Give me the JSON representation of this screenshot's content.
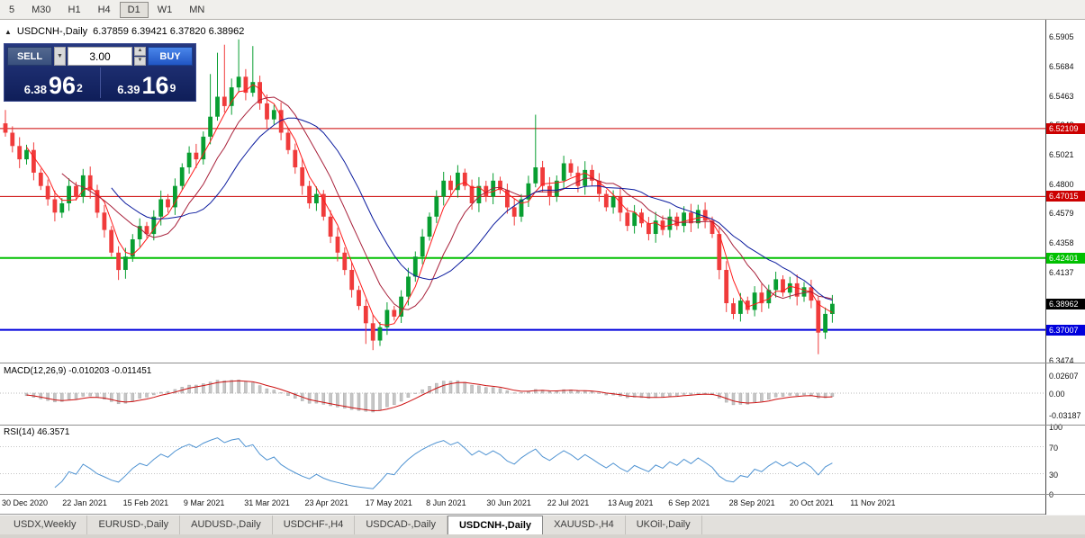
{
  "toolbar": {
    "timeframes": [
      {
        "label": "5",
        "active": false
      },
      {
        "label": "M30",
        "active": false
      },
      {
        "label": "H1",
        "active": false
      },
      {
        "label": "H4",
        "active": false
      },
      {
        "label": "D1",
        "active": true
      },
      {
        "label": "W1",
        "active": false
      },
      {
        "label": "MN",
        "active": false
      }
    ]
  },
  "chart": {
    "title": {
      "collapse_icon": "▲",
      "symbol": "USDCNH-,Daily",
      "ohlc": "6.37859 6.39421 6.37820 6.38962"
    },
    "one_click": {
      "sell_label": "SELL",
      "buy_label": "BUY",
      "volume": "3.00",
      "sell_price": {
        "small": "6.38",
        "big": "96",
        "sup": "2"
      },
      "buy_price": {
        "small": "6.39",
        "big": "16",
        "sup": "9"
      }
    },
    "macd": {
      "label": "MACD(12,26,9) -0.010203 -0.011451"
    },
    "rsi": {
      "label": "RSI(14) 46.3571"
    }
  },
  "chart_data": {
    "type": "candlestick",
    "symbol": "USDCNH-,Daily",
    "timeframe": "Daily",
    "y_axis_ticks": [
      "6.5905",
      "6.5684",
      "6.5463",
      "6.5242",
      "6.5021",
      "6.4800",
      "6.4579",
      "6.4358",
      "6.4137",
      "6.3916",
      "6.3695",
      "6.3474"
    ],
    "y_range": [
      6.3455,
      6.6027
    ],
    "x_dates": [
      "30 Dec 2020",
      "22 Jan 2021",
      "15 Feb 2021",
      "9 Mar 2021",
      "31 Mar 2021",
      "23 Apr 2021",
      "17 May 2021",
      "8 Jun 2021",
      "30 Jun 2021",
      "22 Jul 2021",
      "13 Aug 2021",
      "6 Sep 2021",
      "28 Sep 2021",
      "20 Oct 2021",
      "11 Nov 2021"
    ],
    "open_first": 6.525,
    "closes": [
      6.518,
      6.508,
      6.498,
      6.505,
      6.488,
      6.478,
      6.468,
      6.458,
      6.465,
      6.478,
      6.47,
      6.486,
      6.475,
      6.458,
      6.445,
      6.428,
      6.415,
      6.425,
      6.438,
      6.448,
      6.442,
      6.455,
      6.468,
      6.462,
      6.478,
      6.492,
      6.503,
      6.498,
      6.515,
      6.53,
      6.545,
      6.538,
      6.552,
      6.56,
      6.548,
      6.556,
      6.54,
      6.528,
      6.535,
      6.518,
      6.505,
      6.492,
      6.478,
      6.465,
      6.472,
      6.455,
      6.44,
      6.428,
      6.415,
      6.4,
      6.388,
      6.375,
      6.362,
      6.372,
      6.385,
      6.38,
      6.395,
      6.41,
      6.425,
      6.44,
      6.455,
      6.47,
      6.482,
      6.475,
      6.488,
      6.478,
      6.465,
      6.478,
      6.47,
      6.482,
      6.475,
      6.462,
      6.455,
      6.468,
      6.48,
      6.492,
      6.478,
      6.47,
      6.482,
      6.495,
      6.488,
      6.478,
      6.49,
      6.482,
      6.472,
      6.462,
      6.47,
      6.458,
      6.448,
      6.458,
      6.45,
      6.442,
      6.452,
      6.445,
      6.455,
      6.448,
      6.458,
      6.45,
      6.46,
      6.452,
      6.442,
      6.415,
      6.39,
      6.382,
      6.392,
      6.385,
      6.398,
      6.39,
      6.4,
      6.408,
      6.398,
      6.405,
      6.395,
      6.402,
      6.392,
      6.368,
      6.382,
      6.3896
    ],
    "wick_base": 0.003,
    "spikes": {
      "0": {
        "h": 6.535
      },
      "16": {
        "l": 6.4075
      },
      "29": {
        "h": 6.562
      },
      "30": {
        "h": 6.578
      },
      "31": {
        "h": 6.584
      },
      "33": {
        "h": 6.588
      },
      "35": {
        "h": 6.583
      },
      "51": {
        "l": 6.3595
      },
      "52": {
        "l": 6.3548
      },
      "53": {
        "l": 6.358
      },
      "75": {
        "h": 6.5315
      },
      "101": {
        "l": 6.408
      },
      "115": {
        "l": 6.3518
      }
    },
    "levels": [
      {
        "price": 6.52109,
        "label": "6.52109",
        "color": "#cc0000",
        "width": 1
      },
      {
        "price": 6.47015,
        "label": "6.47015",
        "color": "#cc0000",
        "width": 1
      },
      {
        "price": 6.42401,
        "label": "6.42401",
        "color": "#00c000",
        "width": 2
      },
      {
        "price": 6.37007,
        "label": "6.37007",
        "color": "#0000dc",
        "width": 2
      }
    ],
    "current_price": {
      "price": 6.38962,
      "label": "6.38962",
      "bg": "#000000"
    },
    "moving_average_periods": [
      4,
      9,
      16
    ],
    "colors": {
      "up": "#089e31",
      "down": "#f03b3b",
      "ma_fast": "#ff1a1a",
      "ma_mid": "#a8203a",
      "ma_slow": "#0b1b9e",
      "macd_hist": "#c6c6c6",
      "macd_hist_border": "#a9a9a9",
      "macd_signal": "#cc1111",
      "rsi_line": "#4f93d2"
    },
    "macd": {
      "params": "12,26,9",
      "values": [
        "-0.010203",
        "-0.011451"
      ],
      "ticks": [
        "0.02607",
        "0.00",
        "-0.03187"
      ]
    },
    "rsi": {
      "period": "14",
      "value": "46.3571",
      "ticks": [
        "100",
        "70",
        "30",
        "0"
      ]
    }
  },
  "tabs": {
    "items": [
      {
        "label": "USDX,Weekly",
        "active": false
      },
      {
        "label": "EURUSD-,Daily",
        "active": false
      },
      {
        "label": "AUDUSD-,Daily",
        "active": false
      },
      {
        "label": "USDCHF-,H4",
        "active": false
      },
      {
        "label": "USDCAD-,Daily",
        "active": false
      },
      {
        "label": "USDCNH-,Daily",
        "active": true
      },
      {
        "label": "XAUUSD-,H4",
        "active": false
      },
      {
        "label": "UKOil-,Daily",
        "active": false
      }
    ]
  }
}
